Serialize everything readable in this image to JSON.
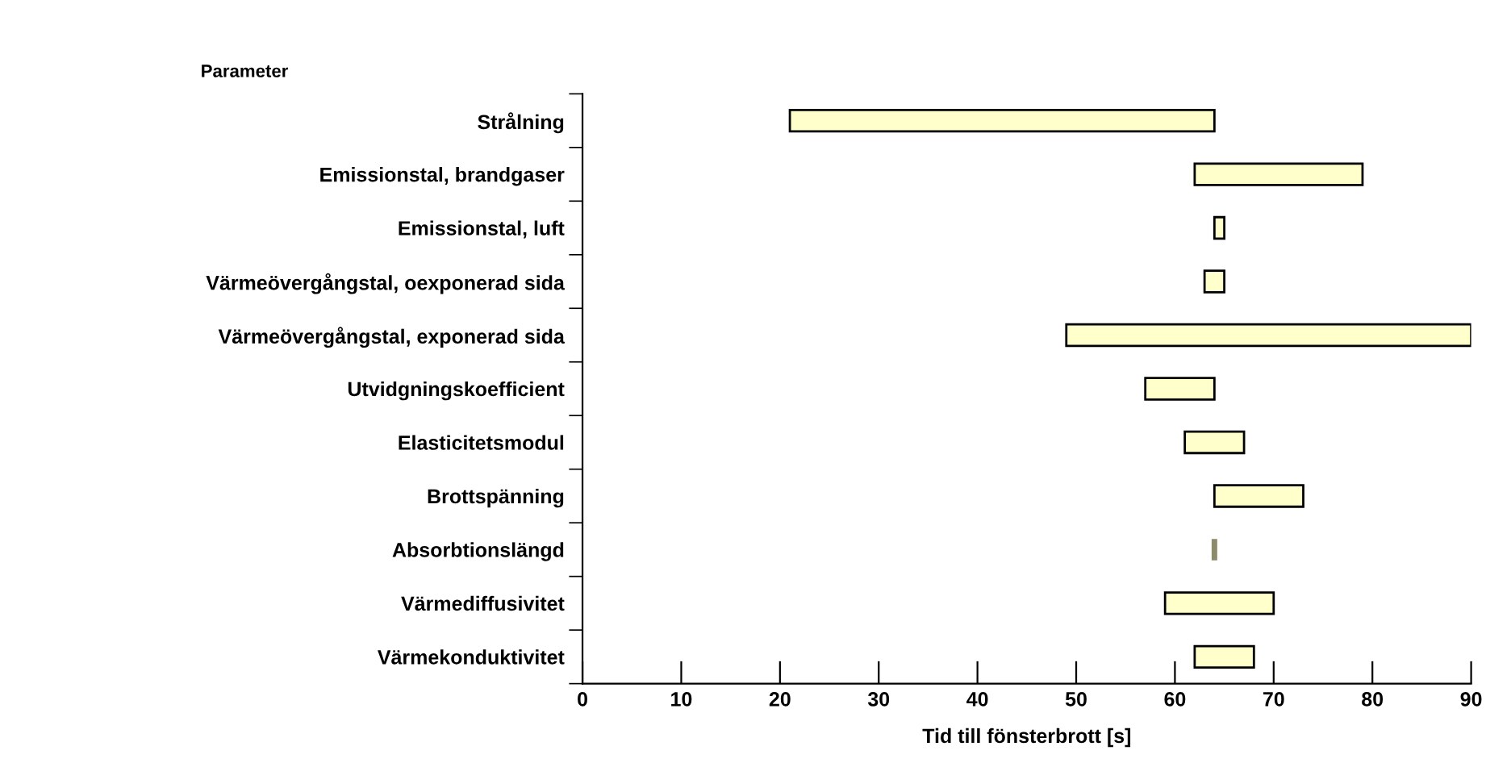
{
  "chart_data": {
    "type": "bar",
    "orientation": "horizontal",
    "ylabel": "Parameter",
    "xlabel": "Tid till fönsterbrott [s]",
    "categories": [
      "Strålning",
      "Emissionstal, brandgaser",
      "Emissionstal, luft",
      "Värmeövergångstal, oexponerad sida",
      "Värmeövergångstal, exponerad sida",
      "Utvidgningskoefficient",
      "Elasticitetsmodul",
      "Brottspänning",
      "Absorbtionslängd",
      "Värmediffusivitet",
      "Värmekonduktivitet"
    ],
    "base": [
      21,
      62,
      64,
      63,
      49,
      57,
      61,
      64,
      64,
      59,
      62
    ],
    "values": [
      43,
      17,
      1,
      2,
      41,
      7,
      6,
      9,
      0,
      11,
      6
    ],
    "colors": [
      "#ffffcc",
      "#ffffcc",
      "#ffffcc",
      "#ffffcc",
      "#ffffcc",
      "#ffffcc",
      "#ffffcc",
      "#ffffcc",
      "#8c8c6c",
      "#ffffcc",
      "#ffffcc"
    ],
    "xlim": [
      0,
      90
    ],
    "xticks": [
      0,
      10,
      20,
      30,
      40,
      50,
      60,
      70,
      80,
      90
    ],
    "grid": false,
    "legend": false
  }
}
